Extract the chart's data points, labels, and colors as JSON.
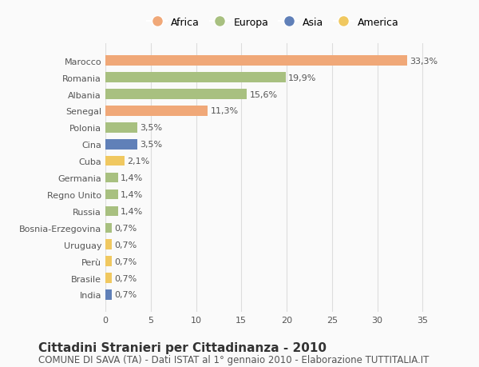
{
  "categories": [
    "Marocco",
    "Romania",
    "Albania",
    "Senegal",
    "Polonia",
    "Cina",
    "Cuba",
    "Germania",
    "Regno Unito",
    "Russia",
    "Bosnia-Erzegovina",
    "Uruguay",
    "Perù",
    "Brasile",
    "India"
  ],
  "values": [
    33.3,
    19.9,
    15.6,
    11.3,
    3.5,
    3.5,
    2.1,
    1.4,
    1.4,
    1.4,
    0.7,
    0.7,
    0.7,
    0.7,
    0.7
  ],
  "labels": [
    "33,3%",
    "19,9%",
    "15,6%",
    "11,3%",
    "3,5%",
    "3,5%",
    "2,1%",
    "1,4%",
    "1,4%",
    "1,4%",
    "0,7%",
    "0,7%",
    "0,7%",
    "0,7%",
    "0,7%"
  ],
  "colors": [
    "#F0A878",
    "#A8C080",
    "#A8C080",
    "#F0A878",
    "#A8C080",
    "#6080B8",
    "#F0C860",
    "#A8C080",
    "#A8C080",
    "#A8C080",
    "#A8C080",
    "#F0C860",
    "#F0C860",
    "#F0C860",
    "#6080B8"
  ],
  "legend_labels": [
    "Africa",
    "Europa",
    "Asia",
    "America"
  ],
  "legend_colors": [
    "#F0A878",
    "#A8C080",
    "#6080B8",
    "#F0C860"
  ],
  "title": "Cittadini Stranieri per Cittadinanza - 2010",
  "subtitle": "COMUNE DI SAVA (TA) - Dati ISTAT al 1° gennaio 2010 - Elaborazione TUTTITALIA.IT",
  "xlim": [
    0,
    37
  ],
  "xticks": [
    0,
    5,
    10,
    15,
    20,
    25,
    30,
    35
  ],
  "bg_color": "#FAFAFA",
  "bar_height": 0.6,
  "title_fontsize": 11,
  "subtitle_fontsize": 8.5,
  "label_fontsize": 8,
  "tick_fontsize": 8,
  "legend_fontsize": 9
}
